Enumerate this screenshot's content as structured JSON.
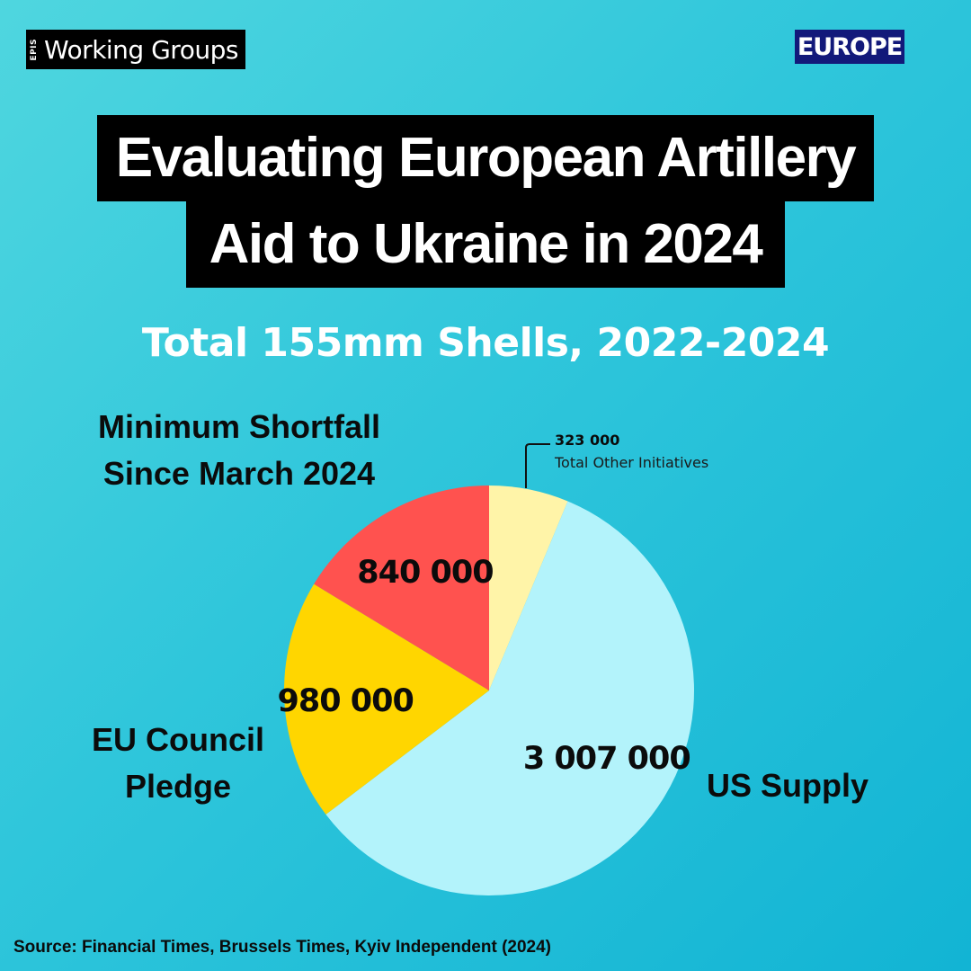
{
  "brand": {
    "mark": "EPIS",
    "name": "Working Groups"
  },
  "region_badge": "EUROPE",
  "title": {
    "line1": "Evaluating European Artillery",
    "line2": "Aid to Ukraine in 2024"
  },
  "source": "Source: Financial Times, Brussels Times, Kyiv Independent  (2024)",
  "colors": {
    "us_supply": "#b3f3fb",
    "eu_pledge": "#ffd600",
    "shortfall": "#ff524f",
    "other": "#fff4a8",
    "badge": "#12197a"
  },
  "chart_data": {
    "type": "pie",
    "title": "Total 155mm Shells, 2022-2024",
    "slices": [
      {
        "key": "other",
        "label": "Total Other Initiatives",
        "value": 323000,
        "value_text": "323 000",
        "color": "#fff4a8"
      },
      {
        "key": "us",
        "label": "US Supply",
        "value": 3007000,
        "value_text": "3 007 000",
        "color": "#b3f3fb"
      },
      {
        "key": "eu",
        "label": "EU Council Pledge",
        "value": 980000,
        "value_text": "980 000",
        "color": "#ffd600"
      },
      {
        "key": "shortfall",
        "label": "Minimum Shortfall Since March 2024",
        "value": 840000,
        "value_text": "840 000",
        "color": "#ff524f"
      }
    ],
    "start_angle_deg": 0,
    "direction": "clockwise",
    "legend": "none"
  }
}
